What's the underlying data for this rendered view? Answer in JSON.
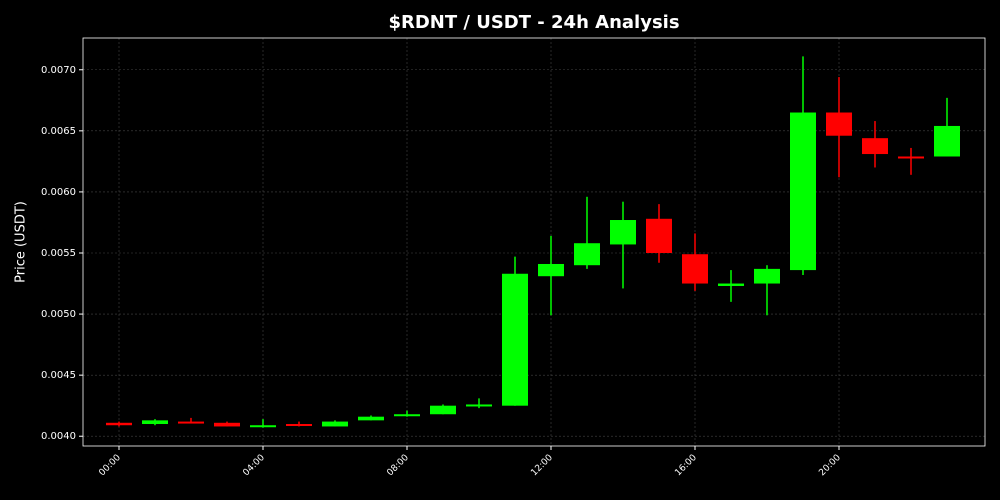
{
  "chart_data": {
    "type": "candlestick",
    "title": "$RDNT / USDT - 24h Analysis",
    "y_label": "Price (USDT)",
    "categories": [
      "00:00",
      null,
      null,
      null,
      "04:00",
      null,
      null,
      null,
      "08:00",
      null,
      null,
      null,
      "12:00",
      null,
      null,
      null,
      "16:00",
      null,
      null,
      null,
      "20:00",
      null,
      null,
      null
    ],
    "open": [
      0.00411,
      0.0041,
      0.00412,
      0.00411,
      0.00408,
      0.0041,
      0.00408,
      0.00413,
      0.00417,
      0.00418,
      0.00425,
      0.00425,
      0.00531,
      0.0054,
      0.00557,
      0.00578,
      0.00549,
      0.00523,
      0.00525,
      0.00536,
      0.00665,
      0.00644,
      0.00629,
      0.00629
    ],
    "high": [
      0.00412,
      0.00414,
      0.00415,
      0.00412,
      0.00414,
      0.00412,
      0.00413,
      0.00417,
      0.00421,
      0.00426,
      0.00431,
      0.00547,
      0.00564,
      0.00596,
      0.00592,
      0.0059,
      0.00566,
      0.00536,
      0.0054,
      0.00711,
      0.00694,
      0.00658,
      0.00636,
      0.00677
    ],
    "low": [
      0.00408,
      0.00409,
      0.00411,
      0.00408,
      0.00407,
      0.00408,
      0.00408,
      0.00413,
      0.00416,
      0.00418,
      0.00423,
      0.00425,
      0.00499,
      0.00537,
      0.00521,
      0.00542,
      0.00519,
      0.0051,
      0.00499,
      0.00532,
      0.00612,
      0.0062,
      0.00614,
      0.00629
    ],
    "close": [
      0.00409,
      0.00413,
      0.00411,
      0.00408,
      0.00409,
      0.00409,
      0.00412,
      0.00416,
      0.00418,
      0.00425,
      0.00426,
      0.00533,
      0.00541,
      0.00558,
      0.00577,
      0.0055,
      0.00525,
      0.00525,
      0.00537,
      0.00665,
      0.00646,
      0.00631,
      0.00628,
      0.00654
    ],
    "up_color": "#00ff00",
    "down_color": "#ff0000",
    "ylim": [
      0.00392,
      0.00726
    ],
    "yticks": [
      {
        "value": 0.004,
        "label": "0.0040"
      },
      0.0045,
      {
        "value": 0.005,
        "label": "0.0050"
      },
      0.0055,
      {
        "value": 0.006,
        "label": "0.0060"
      },
      0.0065,
      {
        "value": 0.007,
        "label": "0.0070"
      }
    ],
    "grid": true
  }
}
